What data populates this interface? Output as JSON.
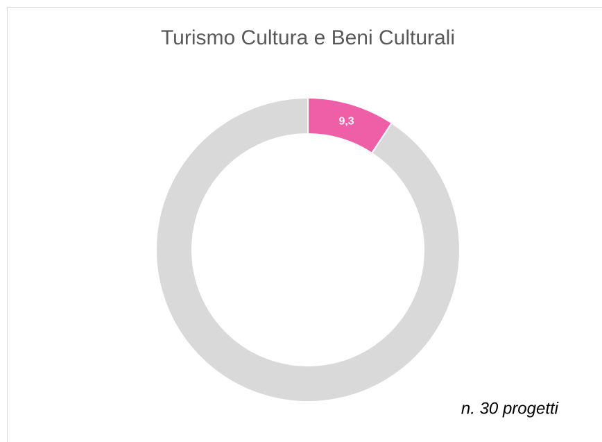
{
  "chart_data": {
    "type": "donut",
    "title": "Turismo Cultura e Beni Culturali",
    "categories": [
      null,
      null
    ],
    "values": [
      9.3,
      90.7
    ],
    "value_labels": [
      "9,3",
      null
    ],
    "colors": [
      "#ef5fa8",
      "#d9d9d9"
    ],
    "annotation": "n. 30 progetti"
  }
}
